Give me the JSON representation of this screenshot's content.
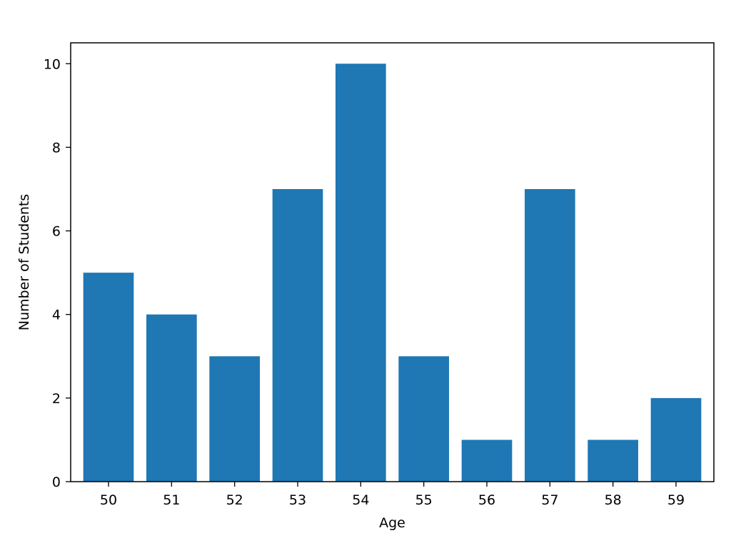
{
  "chart_data": {
    "type": "bar",
    "title": "",
    "xlabel": "Age",
    "ylabel": "Number of Students",
    "categories": [
      "50",
      "51",
      "52",
      "53",
      "54",
      "55",
      "56",
      "57",
      "58",
      "59"
    ],
    "values": [
      5,
      4,
      3,
      7,
      10,
      3,
      1,
      7,
      1,
      2
    ],
    "ylim": [
      0,
      10.5
    ],
    "yticks": [
      0,
      2,
      4,
      6,
      8,
      10
    ],
    "grid": false,
    "bar_color": "#1f77b4"
  }
}
